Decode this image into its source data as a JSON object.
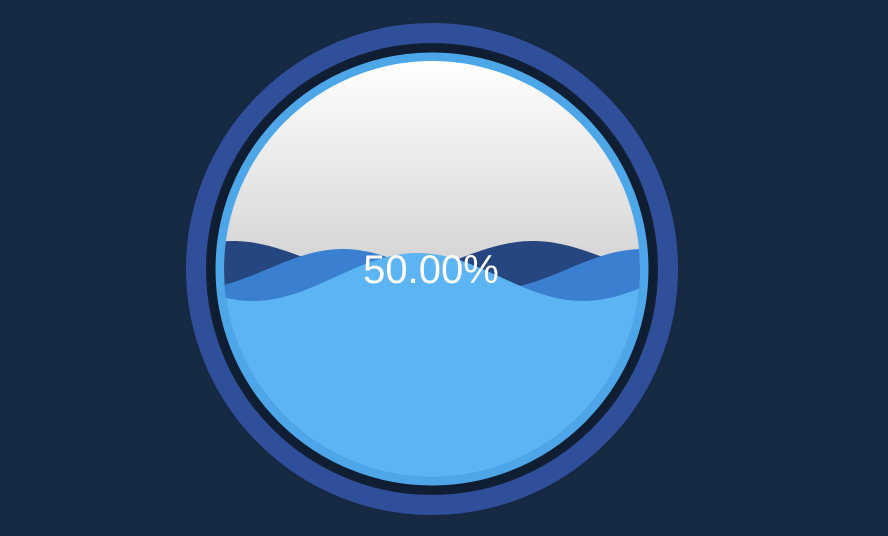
{
  "chart_data": {
    "type": "liquidfill",
    "value": 0.5,
    "label": "50.00%",
    "colors": {
      "background": "#162a44",
      "outer_ring": "#2f4f9b",
      "inner_border": "#4da6e8",
      "wave_front": "#5db4f2",
      "wave_middle": "#3b7fd0",
      "wave_back": "#26467f",
      "empty_top": "#ffffff",
      "empty_bottom": "#a9a9a9",
      "label": "#ffffff"
    }
  }
}
